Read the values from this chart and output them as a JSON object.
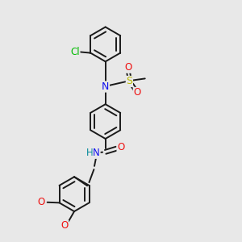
{
  "background_color": "#e8e8e8",
  "bond_color": "#1a1a1a",
  "figsize": [
    3.0,
    3.0
  ],
  "dpi": 100,
  "colors": {
    "Cl": "#00bb00",
    "N": "#1010ee",
    "O": "#ee1010",
    "S": "#bbbb00",
    "H": "#008899",
    "C": "#1a1a1a"
  },
  "lw": 1.4,
  "dbo": 0.012,
  "ring_r": 0.072
}
